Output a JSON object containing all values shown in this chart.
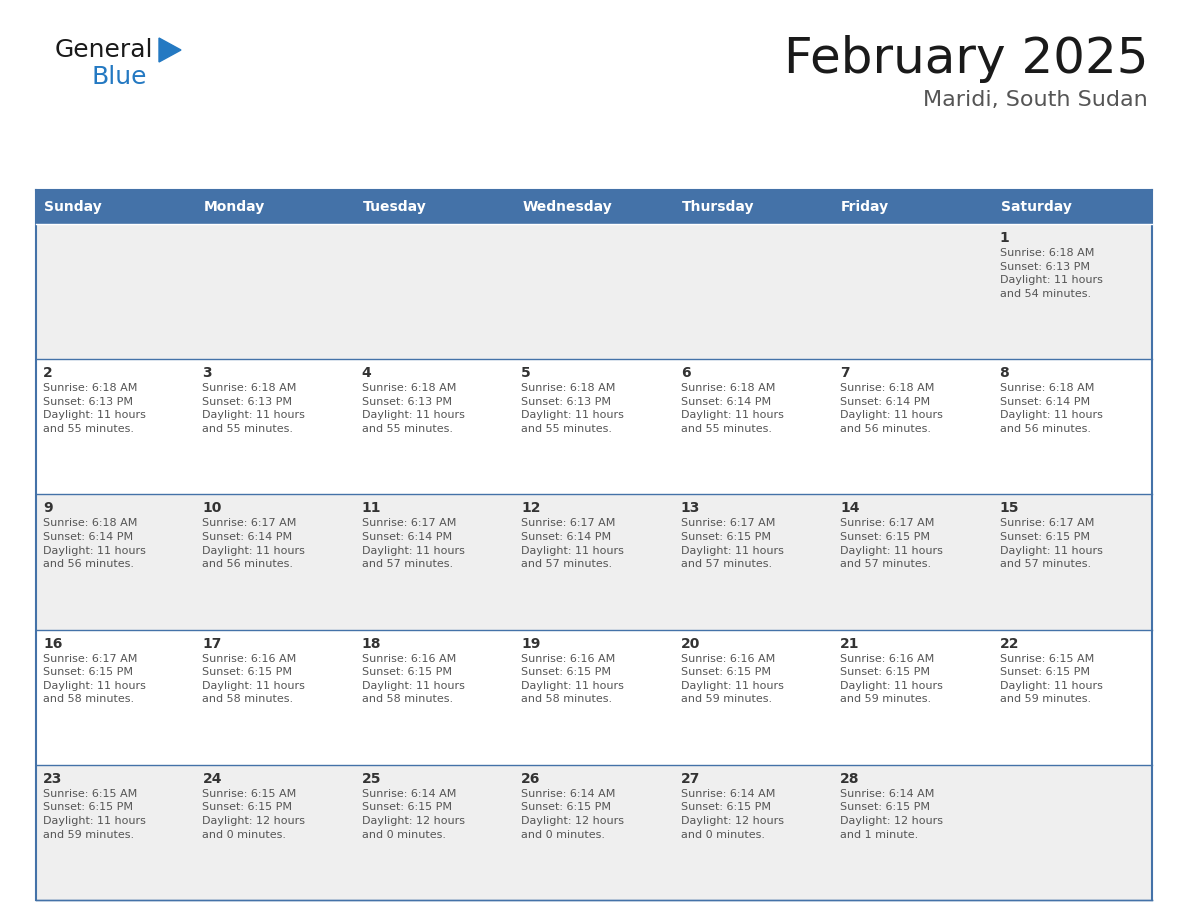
{
  "title": "February 2025",
  "subtitle": "Maridi, South Sudan",
  "header_bg": "#4472A8",
  "header_text": "#FFFFFF",
  "cell_bg_light": "#EFEFEF",
  "cell_bg_white": "#FFFFFF",
  "cell_border_color": "#4472A8",
  "day_names": [
    "Sunday",
    "Monday",
    "Tuesday",
    "Wednesday",
    "Thursday",
    "Friday",
    "Saturday"
  ],
  "calendar_data": [
    [
      {
        "day": "",
        "info": ""
      },
      {
        "day": "",
        "info": ""
      },
      {
        "day": "",
        "info": ""
      },
      {
        "day": "",
        "info": ""
      },
      {
        "day": "",
        "info": ""
      },
      {
        "day": "",
        "info": ""
      },
      {
        "day": "1",
        "info": "Sunrise: 6:18 AM\nSunset: 6:13 PM\nDaylight: 11 hours\nand 54 minutes."
      }
    ],
    [
      {
        "day": "2",
        "info": "Sunrise: 6:18 AM\nSunset: 6:13 PM\nDaylight: 11 hours\nand 55 minutes."
      },
      {
        "day": "3",
        "info": "Sunrise: 6:18 AM\nSunset: 6:13 PM\nDaylight: 11 hours\nand 55 minutes."
      },
      {
        "day": "4",
        "info": "Sunrise: 6:18 AM\nSunset: 6:13 PM\nDaylight: 11 hours\nand 55 minutes."
      },
      {
        "day": "5",
        "info": "Sunrise: 6:18 AM\nSunset: 6:13 PM\nDaylight: 11 hours\nand 55 minutes."
      },
      {
        "day": "6",
        "info": "Sunrise: 6:18 AM\nSunset: 6:14 PM\nDaylight: 11 hours\nand 55 minutes."
      },
      {
        "day": "7",
        "info": "Sunrise: 6:18 AM\nSunset: 6:14 PM\nDaylight: 11 hours\nand 56 minutes."
      },
      {
        "day": "8",
        "info": "Sunrise: 6:18 AM\nSunset: 6:14 PM\nDaylight: 11 hours\nand 56 minutes."
      }
    ],
    [
      {
        "day": "9",
        "info": "Sunrise: 6:18 AM\nSunset: 6:14 PM\nDaylight: 11 hours\nand 56 minutes."
      },
      {
        "day": "10",
        "info": "Sunrise: 6:17 AM\nSunset: 6:14 PM\nDaylight: 11 hours\nand 56 minutes."
      },
      {
        "day": "11",
        "info": "Sunrise: 6:17 AM\nSunset: 6:14 PM\nDaylight: 11 hours\nand 57 minutes."
      },
      {
        "day": "12",
        "info": "Sunrise: 6:17 AM\nSunset: 6:14 PM\nDaylight: 11 hours\nand 57 minutes."
      },
      {
        "day": "13",
        "info": "Sunrise: 6:17 AM\nSunset: 6:15 PM\nDaylight: 11 hours\nand 57 minutes."
      },
      {
        "day": "14",
        "info": "Sunrise: 6:17 AM\nSunset: 6:15 PM\nDaylight: 11 hours\nand 57 minutes."
      },
      {
        "day": "15",
        "info": "Sunrise: 6:17 AM\nSunset: 6:15 PM\nDaylight: 11 hours\nand 57 minutes."
      }
    ],
    [
      {
        "day": "16",
        "info": "Sunrise: 6:17 AM\nSunset: 6:15 PM\nDaylight: 11 hours\nand 58 minutes."
      },
      {
        "day": "17",
        "info": "Sunrise: 6:16 AM\nSunset: 6:15 PM\nDaylight: 11 hours\nand 58 minutes."
      },
      {
        "day": "18",
        "info": "Sunrise: 6:16 AM\nSunset: 6:15 PM\nDaylight: 11 hours\nand 58 minutes."
      },
      {
        "day": "19",
        "info": "Sunrise: 6:16 AM\nSunset: 6:15 PM\nDaylight: 11 hours\nand 58 minutes."
      },
      {
        "day": "20",
        "info": "Sunrise: 6:16 AM\nSunset: 6:15 PM\nDaylight: 11 hours\nand 59 minutes."
      },
      {
        "day": "21",
        "info": "Sunrise: 6:16 AM\nSunset: 6:15 PM\nDaylight: 11 hours\nand 59 minutes."
      },
      {
        "day": "22",
        "info": "Sunrise: 6:15 AM\nSunset: 6:15 PM\nDaylight: 11 hours\nand 59 minutes."
      }
    ],
    [
      {
        "day": "23",
        "info": "Sunrise: 6:15 AM\nSunset: 6:15 PM\nDaylight: 11 hours\nand 59 minutes."
      },
      {
        "day": "24",
        "info": "Sunrise: 6:15 AM\nSunset: 6:15 PM\nDaylight: 12 hours\nand 0 minutes."
      },
      {
        "day": "25",
        "info": "Sunrise: 6:14 AM\nSunset: 6:15 PM\nDaylight: 12 hours\nand 0 minutes."
      },
      {
        "day": "26",
        "info": "Sunrise: 6:14 AM\nSunset: 6:15 PM\nDaylight: 12 hours\nand 0 minutes."
      },
      {
        "day": "27",
        "info": "Sunrise: 6:14 AM\nSunset: 6:15 PM\nDaylight: 12 hours\nand 0 minutes."
      },
      {
        "day": "28",
        "info": "Sunrise: 6:14 AM\nSunset: 6:15 PM\nDaylight: 12 hours\nand 1 minute."
      },
      {
        "day": "",
        "info": ""
      }
    ]
  ],
  "logo_color_general": "#1a1a1a",
  "logo_color_blue": "#2479C2",
  "logo_triangle_color": "#2479C2",
  "title_color": "#1a1a1a",
  "subtitle_color": "#555555",
  "day_number_color": "#333333",
  "info_text_color": "#555555"
}
